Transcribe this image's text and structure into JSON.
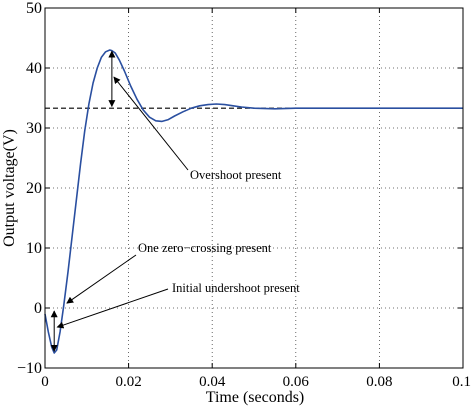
{
  "chart_data": {
    "type": "line",
    "title": "",
    "xlabel": "Time (seconds)",
    "ylabel": "Output voltage(V)",
    "xlim": [
      0,
      0.1
    ],
    "ylim": [
      -10,
      50
    ],
    "grid": true,
    "x_ticks": [
      0,
      0.02,
      0.04,
      0.06,
      0.08,
      0.1
    ],
    "x_tick_labels": [
      "0",
      "0.02",
      "0.04",
      "0.06",
      "0.08",
      "0.1"
    ],
    "y_ticks": [
      -10,
      0,
      10,
      20,
      30,
      40,
      50
    ],
    "y_tick_labels": [
      "−10",
      "0",
      "10",
      "20",
      "30",
      "40",
      "50"
    ],
    "series": [
      {
        "color": "#2a4fa0",
        "x": [
          0,
          0.0008,
          0.0016,
          0.0022,
          0.0028,
          0.0036,
          0.0045,
          0.0055,
          0.0065,
          0.0075,
          0.0085,
          0.0095,
          0.0105,
          0.0115,
          0.0125,
          0.0135,
          0.0145,
          0.0155,
          0.016,
          0.0168,
          0.0178,
          0.019,
          0.0205,
          0.022,
          0.0235,
          0.025,
          0.0265,
          0.028,
          0.0295,
          0.031,
          0.033,
          0.035,
          0.037,
          0.039,
          0.041,
          0.043,
          0.045,
          0.047,
          0.05,
          0.055,
          0.06,
          0.065,
          0.07,
          0.08,
          0.09,
          0.1
        ],
        "y": [
          -1,
          -4,
          -6.5,
          -7.5,
          -7,
          -4,
          0.5,
          6,
          12,
          18,
          24,
          29.5,
          34,
          37.5,
          40,
          41.8,
          42.7,
          43,
          42.9,
          42.5,
          41.3,
          39.5,
          37,
          34.8,
          33,
          31.8,
          31.2,
          31.1,
          31.4,
          32,
          32.7,
          33.3,
          33.7,
          33.9,
          34,
          33.9,
          33.7,
          33.5,
          33.3,
          33.2,
          33.3,
          33.3,
          33.3,
          33.3,
          33.3,
          33.3
        ]
      }
    ],
    "reference_line": {
      "y": 33.3,
      "x_end": 0.087,
      "style": "dashed"
    },
    "annotations": [
      {
        "id": "overshoot",
        "text": "Overshoot present"
      },
      {
        "id": "zero_crossing",
        "text": "One zero−crossing present"
      },
      {
        "id": "undershoot",
        "text": "Initial undershoot present"
      }
    ]
  }
}
